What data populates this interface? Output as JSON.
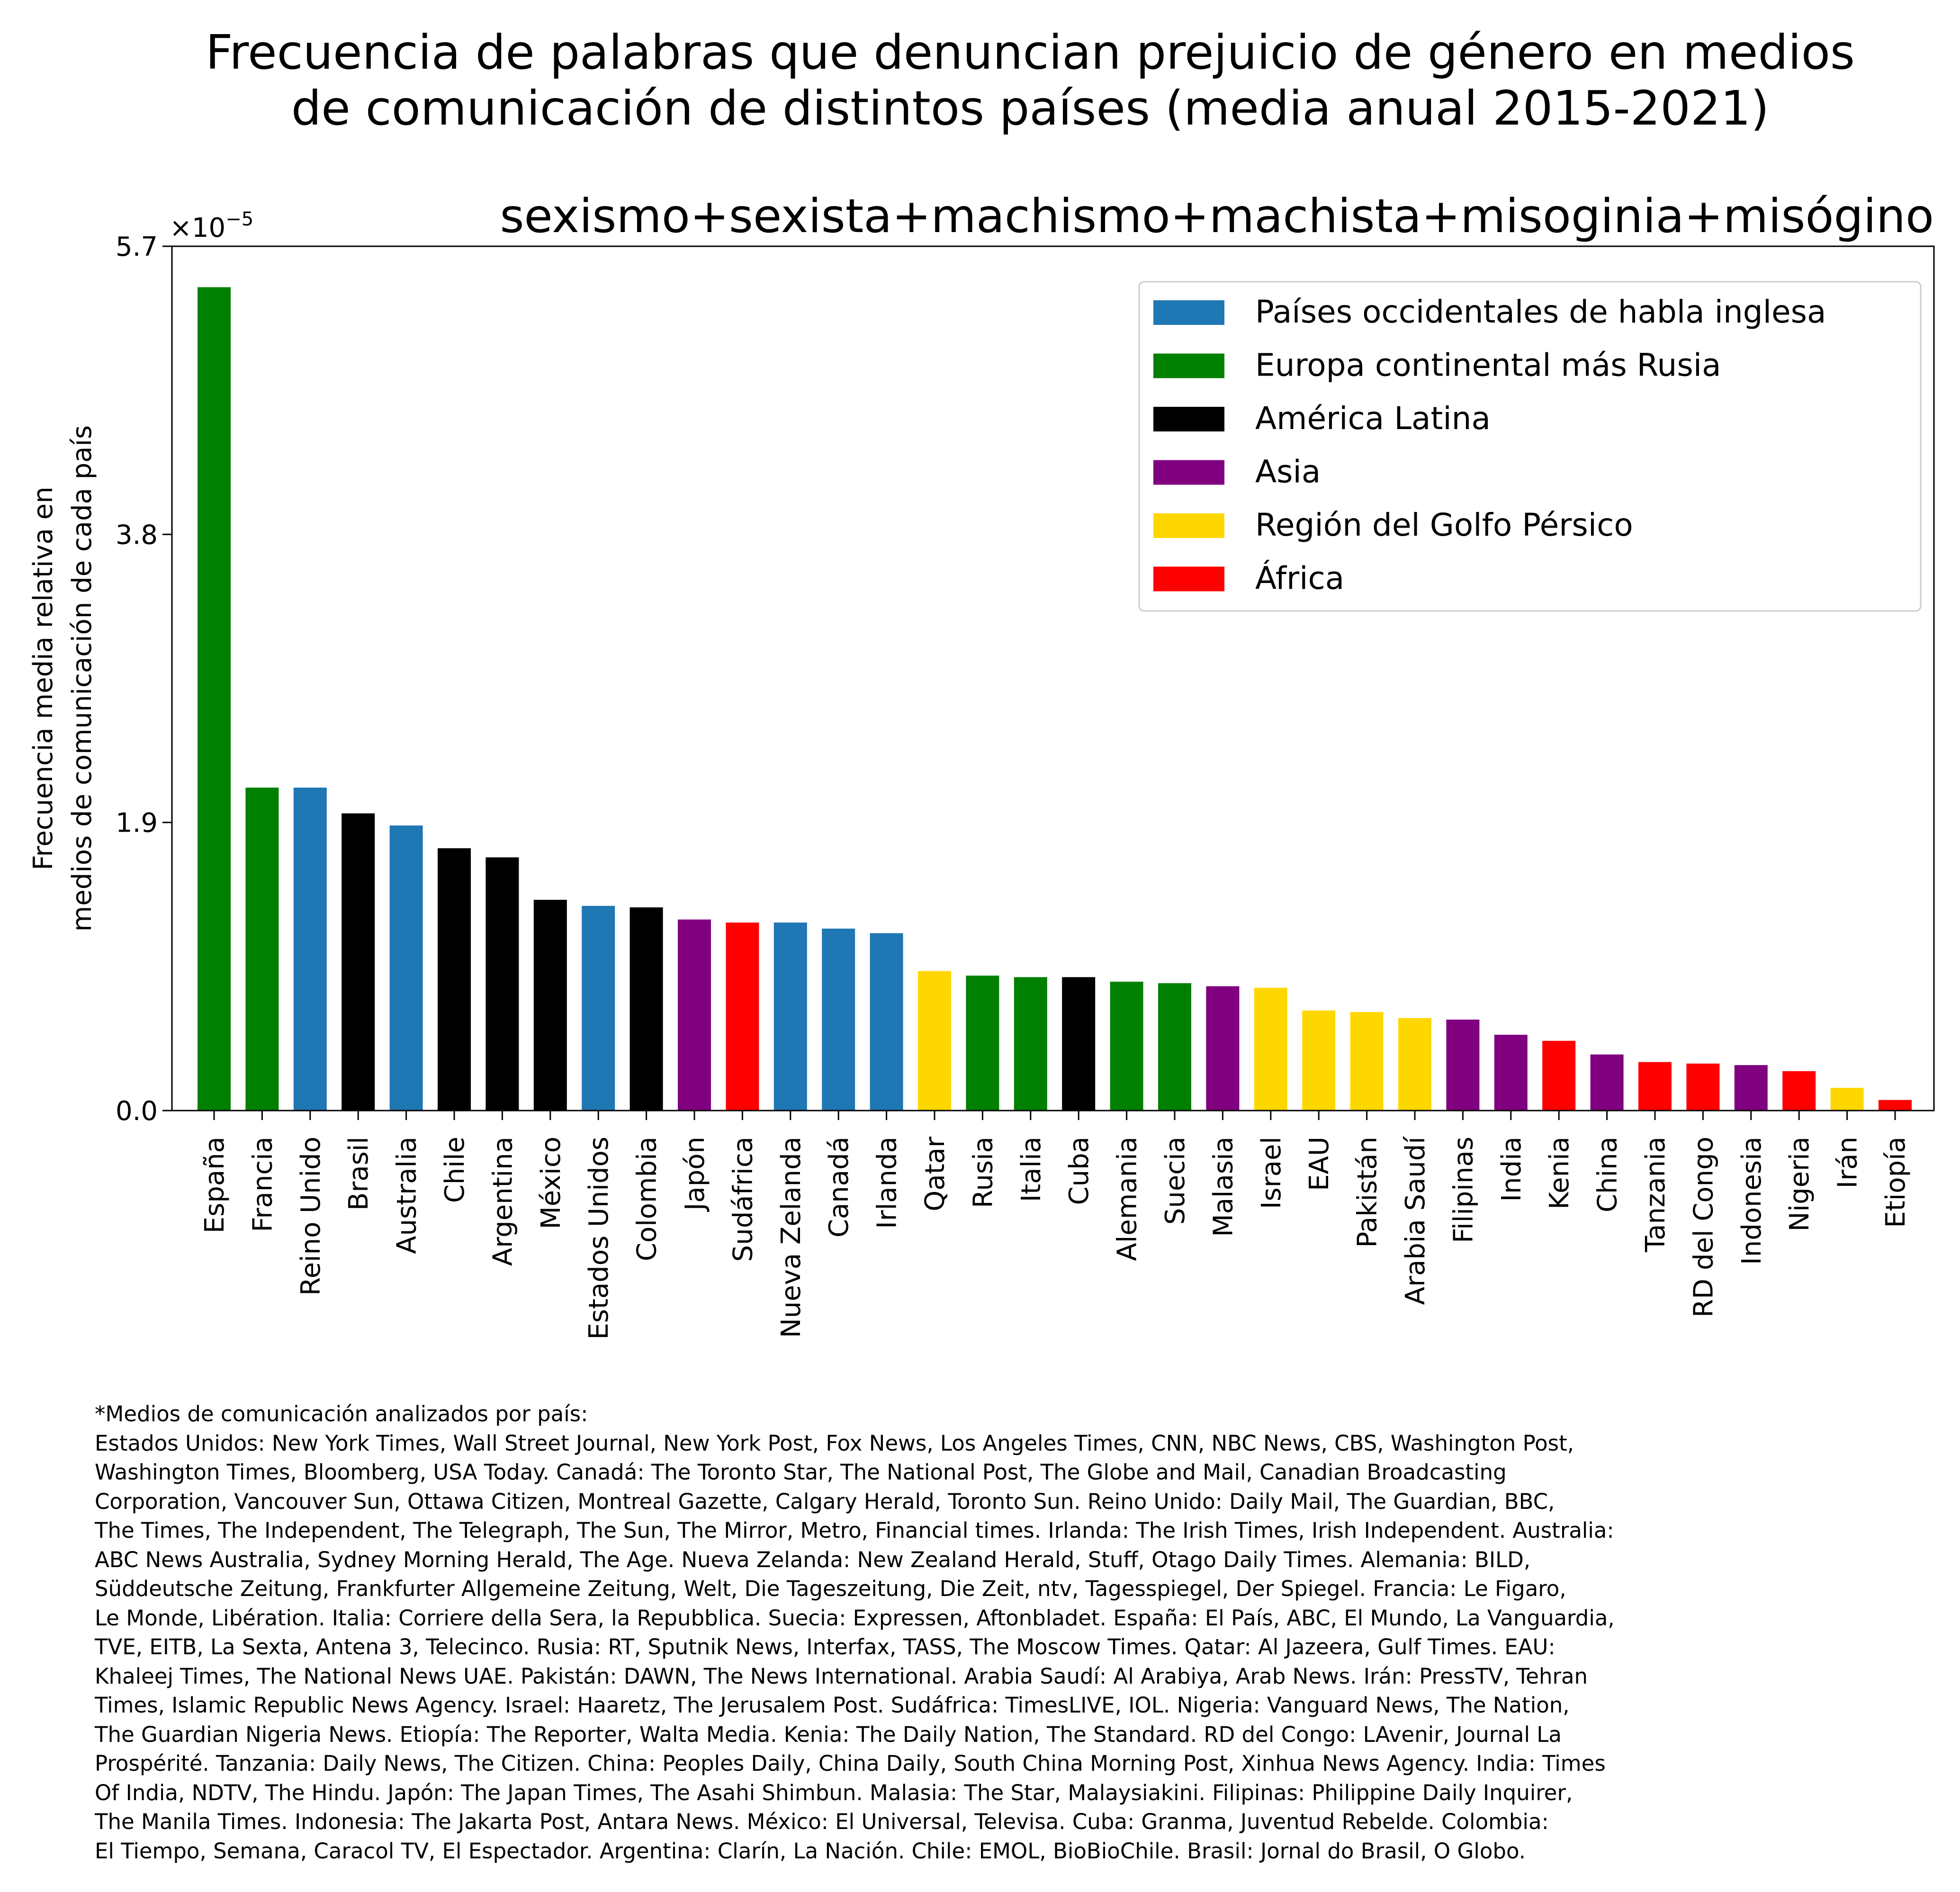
{
  "chart_data": {
    "type": "bar",
    "title": "Frecuencia de palabras que denuncian prejuicio de género en medios\nde comunicación de distintos países (media anual 2015-2021)",
    "subtitle": "sexismo+sexista+machismo+machista+misoginia+misógino",
    "ylabel": "Frecuencia media relativa en\nmedios de comunicación de cada país",
    "xlabel": "",
    "y_multiplier": "×10",
    "y_multiplier_exponent": "−5",
    "ylim": [
      0,
      5.7
    ],
    "yticks": [
      "0.0",
      "1.9",
      "3.8",
      "5.7"
    ],
    "ytick_values": [
      0,
      1.9,
      3.8,
      5.7
    ],
    "grid": false,
    "legend_position": "top-right",
    "legend": [
      {
        "label": "Países occidentales de habla inglesa",
        "color": "#1f77b4"
      },
      {
        "label": "Europa continental más Rusia",
        "color": "#008000"
      },
      {
        "label": "América Latina",
        "color": "#000000"
      },
      {
        "label": "Asia",
        "color": "#800080"
      },
      {
        "label": "Región del Golfo Pérsico",
        "color": "#ffd700"
      },
      {
        "label": "África",
        "color": "#ff0000"
      }
    ],
    "categories": [
      "España",
      "Francia",
      "Reino Unido",
      "Brasil",
      "Australia",
      "Chile",
      "Argentina",
      "México",
      "Estados Unidos",
      "Colombia",
      "Japón",
      "Sudáfrica",
      "Nueva Zelanda",
      "Canadá",
      "Irlanda",
      "Qatar",
      "Rusia",
      "Italia",
      "Cuba",
      "Alemania",
      "Suecia",
      "Malasia",
      "Israel",
      "EAU",
      "Pakistán",
      "Arabia Saudí",
      "Filipinas",
      "India",
      "Kenia",
      "China",
      "Tanzania",
      "RD del Congo",
      "Indonesia",
      "Nigeria",
      "Irán",
      "Etiopía"
    ],
    "values": [
      5.43,
      2.13,
      2.13,
      1.96,
      1.88,
      1.73,
      1.67,
      1.39,
      1.35,
      1.34,
      1.26,
      1.24,
      1.24,
      1.2,
      1.17,
      0.92,
      0.89,
      0.88,
      0.88,
      0.85,
      0.84,
      0.82,
      0.81,
      0.66,
      0.65,
      0.61,
      0.6,
      0.5,
      0.46,
      0.37,
      0.32,
      0.31,
      0.3,
      0.26,
      0.15,
      0.07
    ],
    "colors": [
      "#008000",
      "#008000",
      "#1f77b4",
      "#000000",
      "#1f77b4",
      "#000000",
      "#000000",
      "#000000",
      "#1f77b4",
      "#000000",
      "#800080",
      "#ff0000",
      "#1f77b4",
      "#1f77b4",
      "#1f77b4",
      "#ffd700",
      "#008000",
      "#008000",
      "#000000",
      "#008000",
      "#008000",
      "#800080",
      "#ffd700",
      "#ffd700",
      "#ffd700",
      "#ffd700",
      "#800080",
      "#800080",
      "#ff0000",
      "#800080",
      "#ff0000",
      "#ff0000",
      "#800080",
      "#ff0000",
      "#ffd700",
      "#ff0000"
    ]
  },
  "footnote": "*Medios de comunicación analizados por país:\nEstados Unidos: New York Times, Wall Street Journal, New York Post, Fox News, Los Angeles Times, CNN, NBC News, CBS, Washington Post,\nWashington Times, Bloomberg, USA Today. Canadá: The Toronto Star, The National Post, The Globe and Mail, Canadian Broadcasting\nCorporation, Vancouver Sun, Ottawa Citizen, Montreal Gazette, Calgary Herald, Toronto Sun. Reino Unido: Daily Mail, The Guardian, BBC,\nThe Times, The Independent, The Telegraph, The Sun, The Mirror, Metro, Financial times. Irlanda: The Irish Times, Irish Independent. Australia:\nABC News Australia, Sydney Morning Herald, The Age. Nueva Zelanda: New Zealand Herald, Stuff, Otago Daily Times. Alemania: BILD,\nSüddeutsche Zeitung, Frankfurter Allgemeine Zeitung, Welt, Die Tageszeitung, Die Zeit, ntv, Tagesspiegel, Der Spiegel. Francia: Le Figaro,\nLe Monde, Libération. Italia: Corriere della Sera, la Repubblica. Suecia: Expressen, Aftonbladet. España: El País, ABC, El Mundo, La Vanguardia,\nTVE, EITB, La Sexta, Antena 3, Telecinco. Rusia: RT, Sputnik News, Interfax, TASS, The Moscow Times. Qatar: Al Jazeera, Gulf Times. EAU:\nKhaleej Times, The National News UAE. Pakistán: DAWN, The News International. Arabia Saudí: Al Arabiya, Arab News. Irán: PressTV, Tehran\nTimes, Islamic Republic News Agency. Israel: Haaretz, The Jerusalem Post. Sudáfrica: TimesLIVE, IOL. Nigeria: Vanguard News, The Nation,\nThe Guardian Nigeria News. Etiopía: The Reporter, Walta Media. Kenia: The Daily Nation, The Standard. RD del Congo: LAvenir, Journal La\nProspérité. Tanzania: Daily News, The Citizen. China: Peoples Daily, China Daily, South China Morning Post, Xinhua News Agency. India: Times\nOf India, NDTV, The Hindu. Japón: The Japan Times, The Asahi Shimbun. Malasia: The Star, Malaysiakini. Filipinas: Philippine Daily Inquirer,\nThe Manila Times. Indonesia: The Jakarta Post, Antara News. México: El Universal, Televisa. Cuba: Granma, Juventud Rebelde. Colombia:\nEl Tiempo, Semana, Caracol TV, El Espectador. Argentina: Clarín, La Nación. Chile: EMOL, BioBioChile. Brasil: Jornal do Brasil, O Globo."
}
